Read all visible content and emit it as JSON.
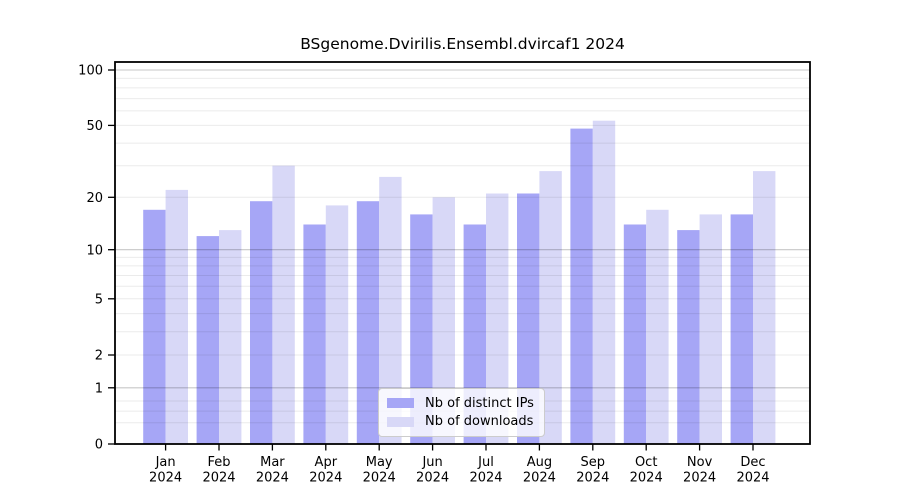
{
  "chart_data": {
    "type": "bar",
    "title": "BSgenome.Dvirilis.Ensembl.dvircaf1 2024",
    "categories": [
      "Jan",
      "Feb",
      "Mar",
      "Apr",
      "May",
      "Jun",
      "Jul",
      "Aug",
      "Sep",
      "Oct",
      "Nov",
      "Dec"
    ],
    "category_year": "2024",
    "series": [
      {
        "name": "Nb of distinct IPs",
        "color": "#a6a6f6",
        "values": [
          17,
          12,
          19,
          14,
          19,
          16,
          14,
          21,
          48,
          14,
          13,
          16
        ]
      },
      {
        "name": "Nb of downloads",
        "color": "#d8d8f7",
        "values": [
          22,
          13,
          30,
          18,
          26,
          20,
          21,
          28,
          53,
          17,
          16,
          28
        ]
      }
    ],
    "y_ticks": [
      0,
      1,
      2,
      5,
      10,
      20,
      50,
      100
    ],
    "y_scale": "pseudo-log (log10(1+y))",
    "ylim": [
      0,
      110
    ],
    "xlabel": "",
    "ylabel": "",
    "grid": {
      "on": true,
      "major": [
        1,
        10,
        100
      ],
      "minor": [
        0.3,
        0.5,
        0.7,
        2,
        3,
        4,
        5,
        6,
        7,
        8,
        9,
        20,
        30,
        40,
        50,
        60,
        70,
        80,
        90
      ]
    },
    "legend": {
      "position": "inside-bottom-center",
      "entries": [
        "Nb of distinct IPs",
        "Nb of downloads"
      ]
    }
  },
  "colors": {
    "background": "#ffffff",
    "frame": "#000000",
    "text": "#000000",
    "major_gridline": "rgba(0,0,0,0.22)",
    "minor_gridline": "rgba(0,0,0,0.08)",
    "legend_bg": "rgba(255,255,255,0.8)",
    "legend_border": "#cccccc"
  }
}
